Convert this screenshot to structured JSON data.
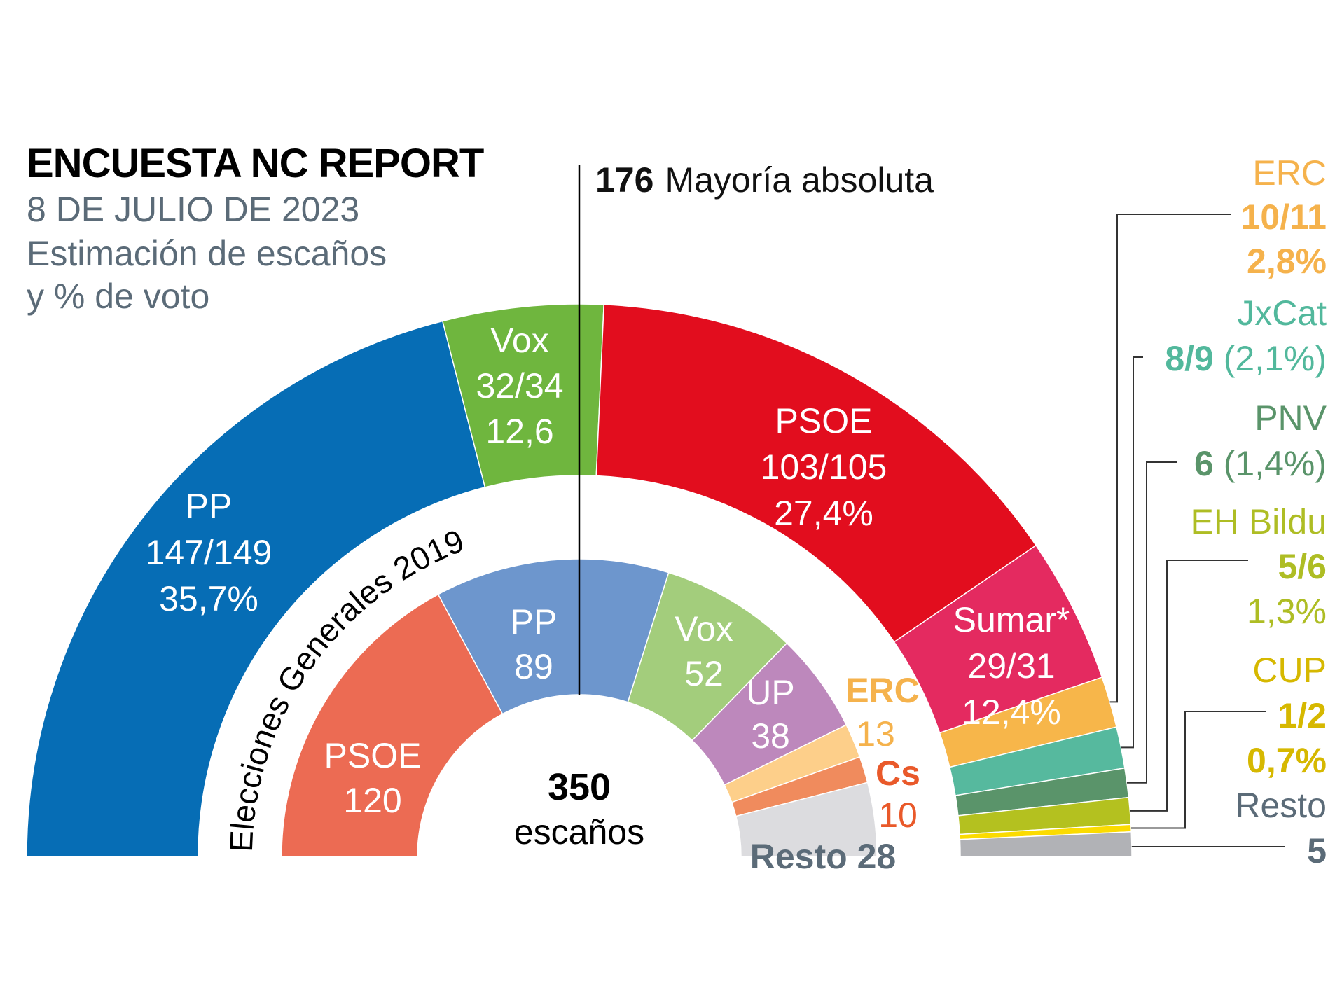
{
  "header": {
    "title": "ENCUESTA NC REPORT",
    "subtitle_lines": [
      "8 DE JULIO DE 2023",
      "Estimación de escaños",
      "y % de voto"
    ]
  },
  "majority": {
    "seats": "176",
    "label": "Mayoría absoluta"
  },
  "center": {
    "total": "350",
    "unit": "escaños"
  },
  "ring_label_2019": "Elecciones Generales 2019",
  "chart_data": [
    {
      "type": "pie",
      "subtype": "parliament-semicircle",
      "title": "Encuesta NC Report — 8 de julio de 2023 — Estimación de escaños y % de voto",
      "total_seats": 350,
      "majority": 176,
      "series": [
        {
          "name": "PP",
          "seats_label": "147/149",
          "seats_range": [
            147,
            149
          ],
          "vote_pct_label": "35,7%",
          "vote_pct": 35.7,
          "color": "#066db5"
        },
        {
          "name": "Vox",
          "seats_label": "32/34",
          "seats_range": [
            32,
            34
          ],
          "vote_pct_label": "12,6",
          "vote_pct": 12.6,
          "color": "#6fb63e"
        },
        {
          "name": "PSOE",
          "seats_label": "103/105",
          "seats_range": [
            103,
            105
          ],
          "vote_pct_label": "27,4%",
          "vote_pct": 27.4,
          "color": "#e20d1e"
        },
        {
          "name": "Sumar*",
          "seats_label": "29/31",
          "seats_range": [
            29,
            31
          ],
          "vote_pct_label": "12,4%",
          "vote_pct": 12.4,
          "color": "#e42a60"
        },
        {
          "name": "ERC",
          "seats_label": "10/11",
          "seats_range": [
            10,
            11
          ],
          "vote_pct_label": "2,8%",
          "vote_pct": 2.8,
          "color": "#f7b64a"
        },
        {
          "name": "JxCat",
          "seats_label": "8/9",
          "seats_range": [
            8,
            9
          ],
          "vote_pct_label": "(2,1%)",
          "vote_pct": 2.1,
          "color": "#56b99e"
        },
        {
          "name": "PNV",
          "seats_label": "6",
          "seats_range": [
            6,
            6
          ],
          "vote_pct_label": "(1,4%)",
          "vote_pct": 1.4,
          "color": "#5a946a"
        },
        {
          "name": "EH Bildu",
          "seats_label": "5/6",
          "seats_range": [
            5,
            6
          ],
          "vote_pct_label": "1,3%",
          "vote_pct": 1.3,
          "color": "#b4c11f"
        },
        {
          "name": "CUP",
          "seats_label": "1/2",
          "seats_range": [
            1,
            2
          ],
          "vote_pct_label": "0,7%",
          "vote_pct": 0.7,
          "color": "#fbdb00"
        },
        {
          "name": "Resto",
          "seats_label": "5",
          "seats_range": [
            5,
            5
          ],
          "vote_pct_label": "",
          "vote_pct": null,
          "color": "#b1b2b6"
        }
      ]
    },
    {
      "type": "pie",
      "subtype": "parliament-semicircle",
      "title": "Elecciones Generales 2019",
      "total_seats": 350,
      "series": [
        {
          "name": "PSOE",
          "seats": 120,
          "color": "#ec6b53"
        },
        {
          "name": "PP",
          "seats": 89,
          "color": "#6d96cd"
        },
        {
          "name": "Vox",
          "seats": 52,
          "color": "#a3cd7c"
        },
        {
          "name": "UP",
          "seats": 38,
          "color": "#bd88bc"
        },
        {
          "name": "ERC",
          "seats": 13,
          "color": "#fdcf8a"
        },
        {
          "name": "Cs",
          "seats": 10,
          "color": "#f08b5d"
        },
        {
          "name": "Resto",
          "seats": 28,
          "color": "#dcdcdf"
        }
      ]
    }
  ],
  "labels_2023_inside": {
    "pp": [
      "PP",
      "147/149",
      "35,7%"
    ],
    "vox": [
      "Vox",
      "32/34",
      "12,6"
    ],
    "psoe": [
      "PSOE",
      "103/105",
      "27,4%"
    ],
    "sumar": [
      "Sumar*",
      "29/31",
      "12,4%"
    ]
  },
  "labels_2023_right": {
    "erc": {
      "name": "ERC",
      "seats": "10/11",
      "pct": "2,8%",
      "color": "#f5b24c"
    },
    "jxcat": {
      "name": "JxCat",
      "seats": "8/9",
      "pct": "(2,1%)",
      "color": "#52b89c"
    },
    "pnv": {
      "name": "PNV",
      "seats": "6",
      "pct": "(1,4%)",
      "color": "#5a946a"
    },
    "bildu": {
      "name": "EH Bildu",
      "seats": "5/6",
      "pct": "1,3%",
      "color": "#aebd24"
    },
    "cup": {
      "name": "CUP",
      "seats": "1/2",
      "pct": "0,7%",
      "color": "#d6b800"
    },
    "resto": {
      "name": "Resto",
      "seats": "5",
      "color": "#5b6b78"
    }
  },
  "labels_2019": {
    "psoe": [
      "PSOE",
      "120"
    ],
    "pp": [
      "PP",
      "89"
    ],
    "vox": [
      "Vox",
      "52"
    ],
    "up": [
      "UP",
      "38"
    ],
    "erc": [
      "ERC",
      "13"
    ],
    "cs": [
      "Cs",
      "10"
    ],
    "resto": "Resto 28"
  },
  "colors": {
    "text_gray": "#5b6b78",
    "erc_2019_label": "#f5b24c",
    "cs_2019_label": "#e9592a",
    "resto_label": "#5b6b78"
  }
}
